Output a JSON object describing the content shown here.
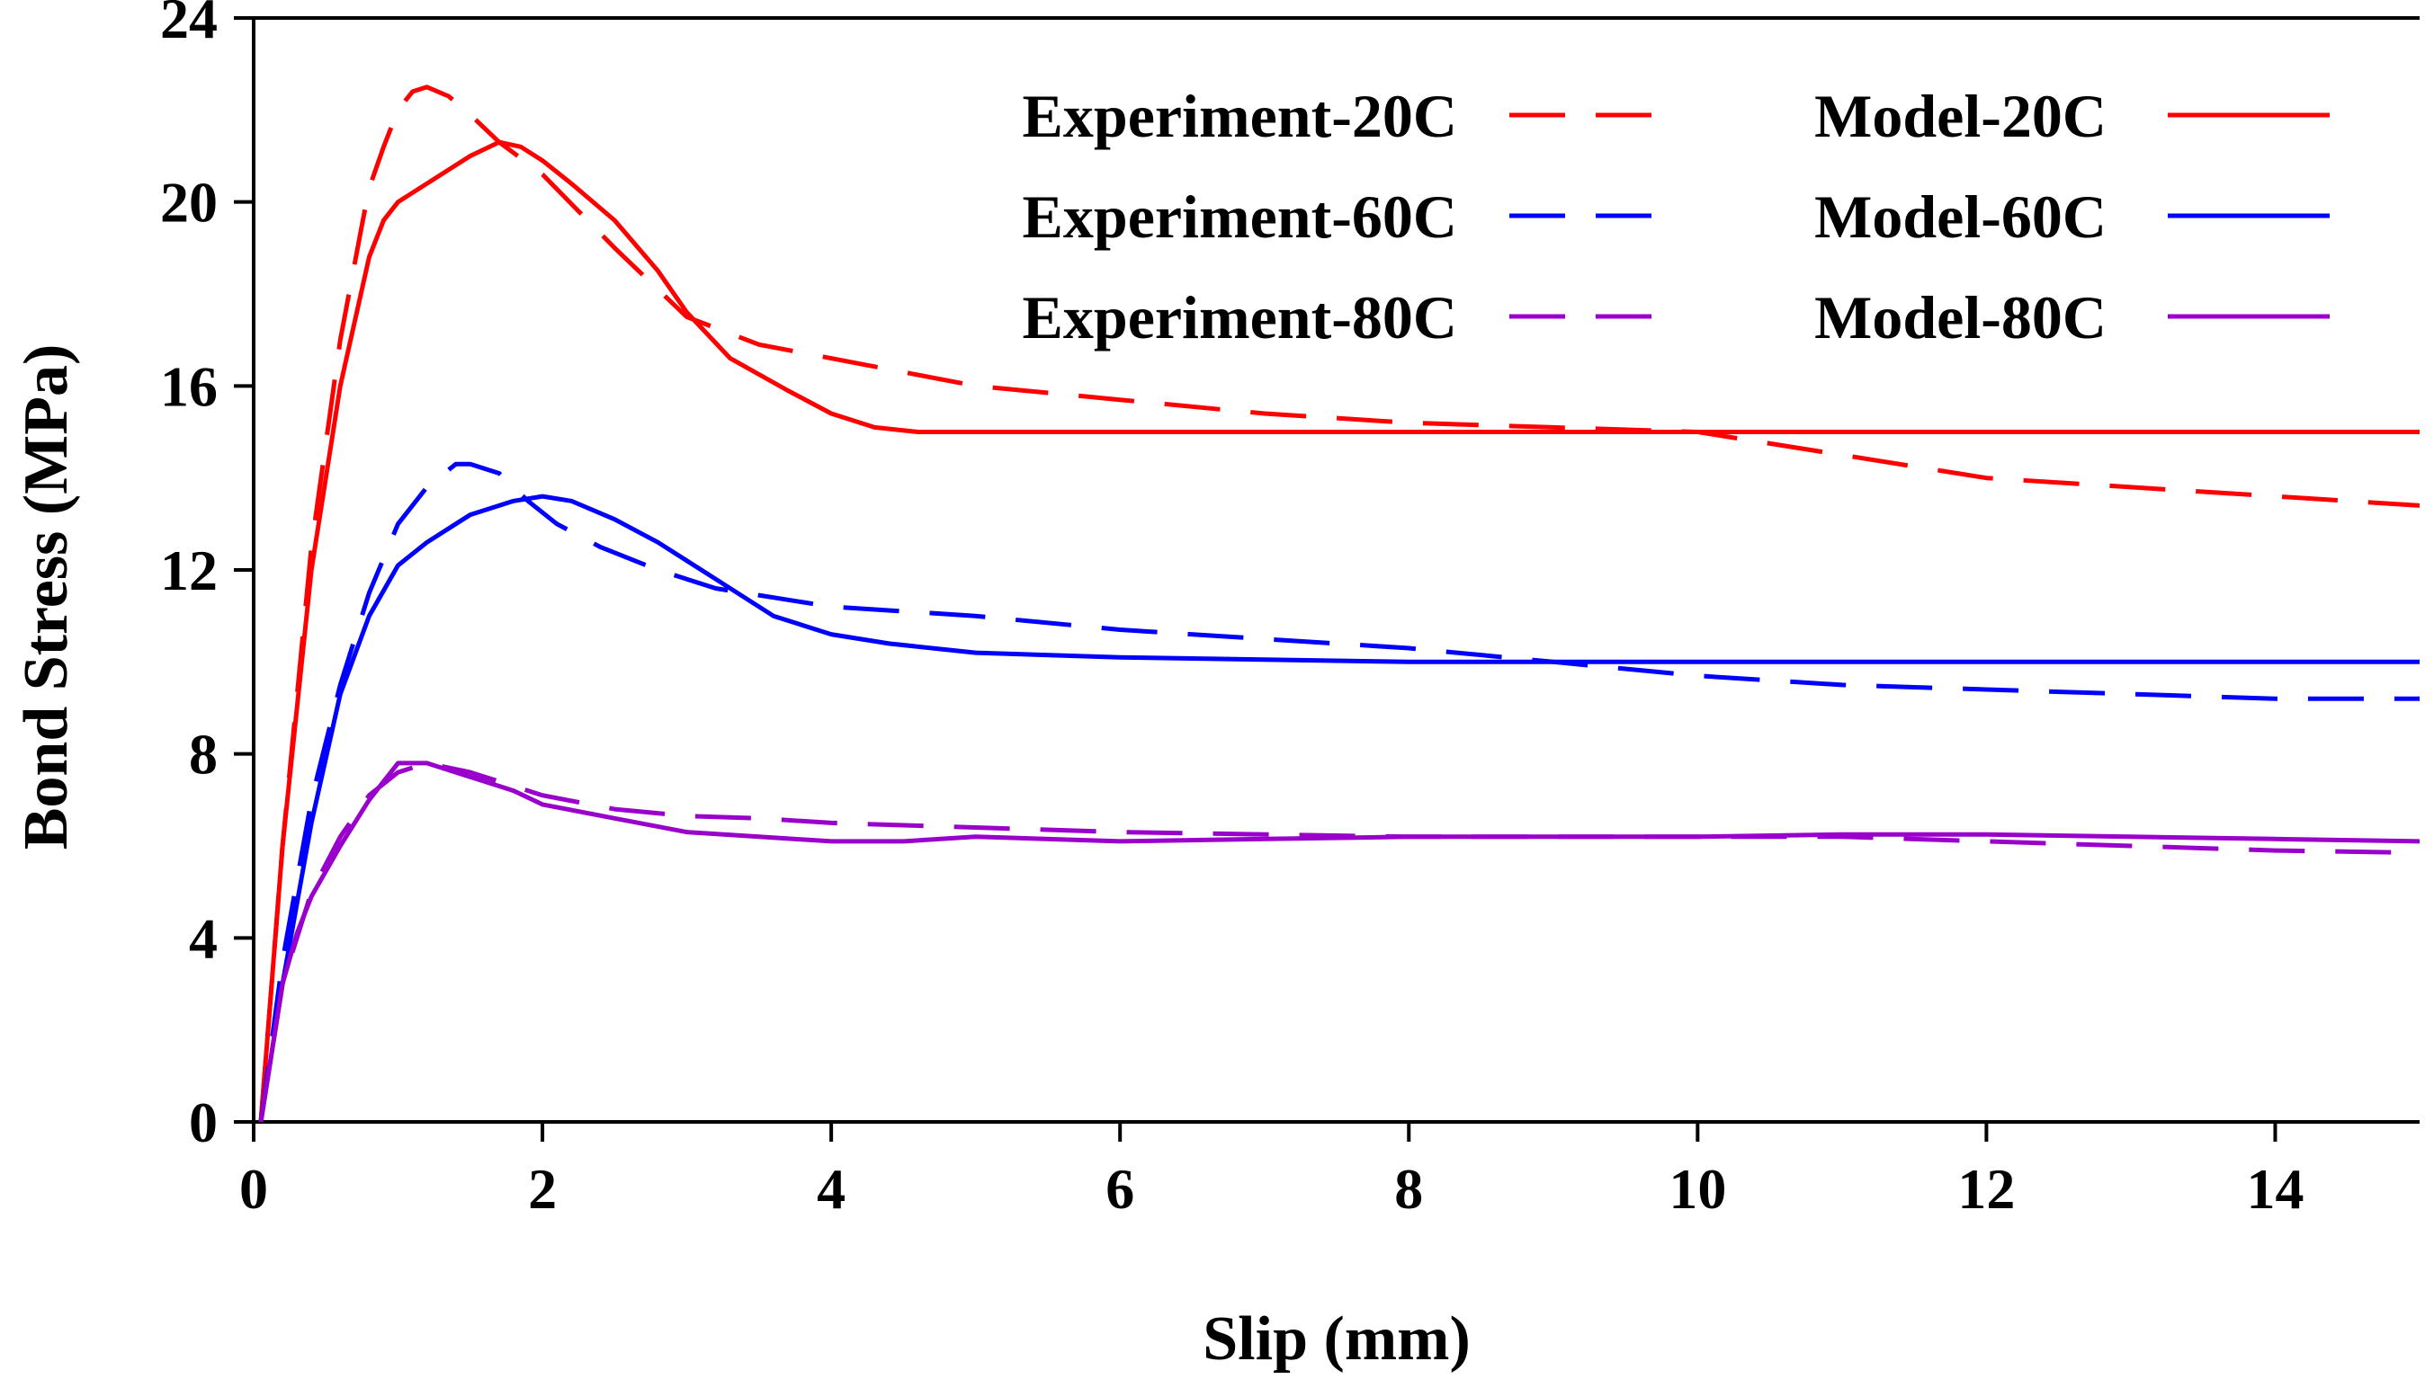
{
  "chart_data": {
    "type": "line",
    "title": "",
    "xlabel": "Slip (mm)",
    "ylabel": "Bond Stress (MPa)",
    "xlim": [
      0,
      15
    ],
    "ylim": [
      0,
      24
    ],
    "xticks": [
      0,
      2,
      4,
      6,
      8,
      10,
      12,
      14
    ],
    "yticks": [
      0,
      4,
      8,
      12,
      16,
      20,
      24
    ],
    "grid": false,
    "legend_position": "top-right",
    "series": [
      {
        "name": "Experiment-20C",
        "color": "#ff0000",
        "style": "dashed",
        "x": [
          0.05,
          0.2,
          0.4,
          0.6,
          0.75,
          0.8,
          0.9,
          1.0,
          1.1,
          1.2,
          1.35,
          1.5,
          1.7,
          2.0,
          2.5,
          3.0,
          3.5,
          4.0,
          5.0,
          6.0,
          7.0,
          8.0,
          9.0,
          10.0,
          11.0,
          12.0,
          13.0,
          14.0,
          15.0
        ],
        "y": [
          0,
          6.0,
          12.5,
          17.0,
          19.5,
          20.3,
          21.2,
          22.0,
          22.4,
          22.5,
          22.3,
          21.9,
          21.3,
          20.6,
          19.0,
          17.5,
          16.9,
          16.6,
          16.0,
          15.7,
          15.4,
          15.2,
          15.1,
          15.0,
          14.5,
          14.0,
          13.8,
          13.6,
          13.4
        ]
      },
      {
        "name": "Model-20C",
        "color": "#ff0000",
        "style": "solid",
        "x": [
          0.05,
          0.2,
          0.4,
          0.6,
          0.8,
          0.9,
          1.0,
          1.2,
          1.5,
          1.7,
          1.85,
          2.0,
          2.2,
          2.5,
          2.8,
          3.0,
          3.3,
          3.7,
          4.0,
          4.3,
          4.6,
          5.0,
          6.0,
          8.0,
          10.0,
          12.0,
          14.0,
          15.0
        ],
        "y": [
          0,
          6.0,
          12.0,
          16.0,
          18.8,
          19.6,
          20.0,
          20.4,
          21.0,
          21.3,
          21.2,
          20.9,
          20.4,
          19.6,
          18.5,
          17.6,
          16.6,
          15.9,
          15.4,
          15.1,
          15.0,
          15.0,
          15.0,
          15.0,
          15.0,
          15.0,
          15.0,
          15.0
        ]
      },
      {
        "name": "Experiment-60C",
        "color": "#0000ff",
        "style": "dashed",
        "x": [
          0.05,
          0.2,
          0.4,
          0.6,
          0.8,
          1.0,
          1.2,
          1.4,
          1.5,
          1.7,
          1.9,
          2.1,
          2.4,
          2.8,
          3.2,
          3.6,
          4.0,
          5.0,
          6.0,
          7.0,
          8.0,
          9.0,
          10.0,
          11.0,
          12.0,
          13.0,
          14.0,
          15.0
        ],
        "y": [
          0,
          3.5,
          7.0,
          9.5,
          11.5,
          13.0,
          13.8,
          14.3,
          14.3,
          14.1,
          13.5,
          13.0,
          12.5,
          12.0,
          11.6,
          11.4,
          11.2,
          11.0,
          10.7,
          10.5,
          10.3,
          10.0,
          9.7,
          9.5,
          9.4,
          9.3,
          9.2,
          9.2
        ]
      },
      {
        "name": "Model-60C",
        "color": "#0000ff",
        "style": "solid",
        "x": [
          0.05,
          0.2,
          0.4,
          0.6,
          0.8,
          1.0,
          1.2,
          1.5,
          1.8,
          2.0,
          2.2,
          2.5,
          2.8,
          3.2,
          3.6,
          4.0,
          4.4,
          5.0,
          6.0,
          7.0,
          8.0,
          10.0,
          12.0,
          14.0,
          15.0
        ],
        "y": [
          0,
          3.0,
          6.5,
          9.3,
          11.0,
          12.1,
          12.6,
          13.2,
          13.5,
          13.6,
          13.5,
          13.1,
          12.6,
          11.8,
          11.0,
          10.6,
          10.4,
          10.2,
          10.1,
          10.05,
          10.0,
          10.0,
          10.0,
          10.0,
          10.0
        ]
      },
      {
        "name": "Experiment-80C",
        "color": "#9900cc",
        "style": "dashed",
        "x": [
          0.05,
          0.2,
          0.4,
          0.6,
          0.8,
          1.0,
          1.2,
          1.5,
          2.0,
          2.5,
          3.0,
          3.5,
          4.0,
          5.0,
          6.0,
          7.0,
          8.0,
          9.0,
          10.0,
          11.0,
          12.0,
          13.0,
          14.0,
          15.0
        ],
        "y": [
          0,
          3.0,
          5.0,
          6.2,
          7.1,
          7.6,
          7.8,
          7.6,
          7.1,
          6.8,
          6.65,
          6.6,
          6.5,
          6.4,
          6.3,
          6.25,
          6.2,
          6.2,
          6.2,
          6.2,
          6.1,
          6.0,
          5.9,
          5.85
        ]
      },
      {
        "name": "Model-80C",
        "color": "#9900cc",
        "style": "solid",
        "x": [
          0.05,
          0.2,
          0.3,
          0.4,
          0.6,
          0.8,
          1.0,
          1.2,
          1.5,
          1.8,
          2.0,
          2.5,
          3.0,
          3.5,
          4.0,
          4.5,
          5.0,
          6.0,
          7.0,
          8.0,
          9.0,
          10.0,
          11.0,
          12.0,
          13.0,
          14.0,
          15.0
        ],
        "y": [
          0,
          3.0,
          4.1,
          4.9,
          6.0,
          7.0,
          7.8,
          7.8,
          7.5,
          7.2,
          6.9,
          6.6,
          6.3,
          6.2,
          6.1,
          6.1,
          6.2,
          6.1,
          6.15,
          6.2,
          6.2,
          6.2,
          6.25,
          6.25,
          6.2,
          6.15,
          6.1
        ]
      }
    ]
  }
}
